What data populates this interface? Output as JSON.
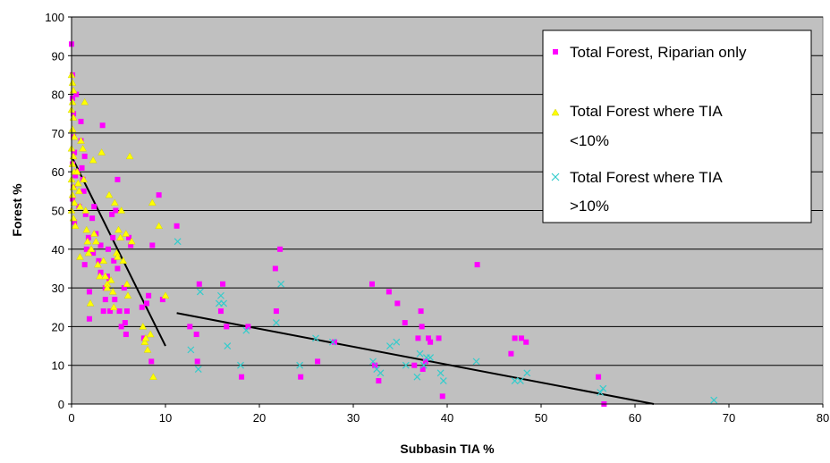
{
  "chart_data": {
    "type": "scatter",
    "xlabel": "Subbasin TIA %",
    "ylabel": "Forest %",
    "xlim": [
      0,
      80
    ],
    "ylim": [
      0,
      100
    ],
    "x_ticks": [
      0,
      10,
      20,
      30,
      40,
      50,
      60,
      70,
      80
    ],
    "y_ticks": [
      0,
      10,
      20,
      30,
      40,
      50,
      60,
      70,
      80,
      90,
      100
    ],
    "grid": "horizontal",
    "plot_background": "#c0c0c0",
    "legend": {
      "placement": "top-right",
      "entries": [
        {
          "line1": "Total Forest, Riparian only",
          "line2": ""
        },
        {
          "line1": "Total Forest where TIA",
          "line2": "<10%"
        },
        {
          "line1": "Total Forest where TIA",
          "line2": ">10%"
        }
      ]
    },
    "series": [
      {
        "name": "Total Forest, Riparian only",
        "marker": "square",
        "color": "#ff00ff",
        "points": [
          [
            0.0,
            93
          ],
          [
            0.1,
            85
          ],
          [
            0.1,
            79
          ],
          [
            0.2,
            75
          ],
          [
            0.2,
            69
          ],
          [
            0.3,
            65
          ],
          [
            0.1,
            62
          ],
          [
            0.2,
            56
          ],
          [
            0.1,
            53
          ],
          [
            0.3,
            47
          ],
          [
            0.5,
            80
          ],
          [
            0.4,
            59
          ],
          [
            0.6,
            60
          ],
          [
            0.8,
            51
          ],
          [
            1.0,
            73
          ],
          [
            1.0,
            68
          ],
          [
            1.1,
            61
          ],
          [
            1.3,
            55
          ],
          [
            1.4,
            64
          ],
          [
            1.2,
            58
          ],
          [
            1.5,
            49
          ],
          [
            1.4,
            36
          ],
          [
            1.6,
            40
          ],
          [
            1.8,
            43
          ],
          [
            1.9,
            29
          ],
          [
            1.9,
            22
          ],
          [
            2.2,
            48
          ],
          [
            2.3,
            39
          ],
          [
            2.4,
            51
          ],
          [
            2.6,
            44
          ],
          [
            2.9,
            37
          ],
          [
            3.1,
            34
          ],
          [
            3.3,
            72
          ],
          [
            3.1,
            41
          ],
          [
            3.4,
            24
          ],
          [
            3.6,
            30
          ],
          [
            3.6,
            27
          ],
          [
            3.8,
            33
          ],
          [
            3.9,
            40
          ],
          [
            4.0,
            32
          ],
          [
            4.1,
            24
          ],
          [
            4.3,
            49
          ],
          [
            4.4,
            43
          ],
          [
            4.5,
            37
          ],
          [
            4.6,
            27
          ],
          [
            4.7,
            50
          ],
          [
            4.9,
            58
          ],
          [
            4.9,
            35
          ],
          [
            5.1,
            24
          ],
          [
            5.3,
            20
          ],
          [
            5.6,
            30
          ],
          [
            5.7,
            21
          ],
          [
            5.9,
            24
          ],
          [
            5.8,
            18
          ],
          [
            6.1,
            43
          ],
          [
            6.3,
            41
          ],
          [
            7.5,
            25
          ],
          [
            7.7,
            17
          ],
          [
            8.0,
            26
          ],
          [
            8.2,
            28
          ],
          [
            8.6,
            41
          ],
          [
            8.5,
            11
          ],
          [
            9.3,
            54
          ],
          [
            9.7,
            27
          ],
          [
            11.2,
            46
          ],
          [
            12.6,
            20
          ],
          [
            13.3,
            18
          ],
          [
            13.4,
            11
          ],
          [
            13.6,
            31
          ],
          [
            15.9,
            24
          ],
          [
            16.1,
            31
          ],
          [
            16.5,
            20
          ],
          [
            18.1,
            7
          ],
          [
            18.8,
            20
          ],
          [
            21.7,
            35
          ],
          [
            21.8,
            24
          ],
          [
            22.2,
            40
          ],
          [
            24.4,
            7
          ],
          [
            26.2,
            11
          ],
          [
            28.0,
            16
          ],
          [
            32.0,
            31
          ],
          [
            32.3,
            10
          ],
          [
            32.7,
            6
          ],
          [
            33.8,
            29
          ],
          [
            34.7,
            26
          ],
          [
            35.5,
            21
          ],
          [
            36.5,
            10
          ],
          [
            36.9,
            17
          ],
          [
            37.2,
            24
          ],
          [
            37.3,
            20
          ],
          [
            37.4,
            9
          ],
          [
            37.7,
            11
          ],
          [
            38.0,
            17
          ],
          [
            38.2,
            16
          ],
          [
            39.1,
            17
          ],
          [
            39.5,
            2
          ],
          [
            43.2,
            36
          ],
          [
            46.8,
            13
          ],
          [
            47.2,
            17
          ],
          [
            47.9,
            17
          ],
          [
            48.4,
            16
          ],
          [
            56.1,
            7
          ],
          [
            56.7,
            0
          ]
        ]
      },
      {
        "name": "Total Forest where TIA <10%",
        "marker": "triangle",
        "color": "#ffff00",
        "points": [
          [
            0.0,
            85
          ],
          [
            0.1,
            83
          ],
          [
            0.2,
            81
          ],
          [
            0.1,
            78
          ],
          [
            0.0,
            76
          ],
          [
            0.2,
            74
          ],
          [
            0.1,
            71
          ],
          [
            0.3,
            69
          ],
          [
            0.0,
            66
          ],
          [
            0.2,
            64
          ],
          [
            0.1,
            62
          ],
          [
            0.3,
            60
          ],
          [
            0.0,
            58
          ],
          [
            0.2,
            56
          ],
          [
            0.1,
            54
          ],
          [
            0.3,
            52
          ],
          [
            0.0,
            50
          ],
          [
            0.2,
            48
          ],
          [
            0.4,
            46
          ],
          [
            0.6,
            60
          ],
          [
            0.7,
            57
          ],
          [
            0.8,
            55
          ],
          [
            0.9,
            51
          ],
          [
            0.9,
            38
          ],
          [
            1.0,
            68
          ],
          [
            1.2,
            66
          ],
          [
            1.4,
            78
          ],
          [
            1.3,
            58
          ],
          [
            1.5,
            50
          ],
          [
            1.6,
            45
          ],
          [
            1.7,
            42
          ],
          [
            1.8,
            39
          ],
          [
            2.0,
            26
          ],
          [
            2.1,
            40
          ],
          [
            2.3,
            63
          ],
          [
            2.4,
            44
          ],
          [
            2.6,
            42
          ],
          [
            2.8,
            36
          ],
          [
            3.0,
            33
          ],
          [
            3.2,
            65
          ],
          [
            3.4,
            37
          ],
          [
            3.6,
            33
          ],
          [
            3.8,
            31
          ],
          [
            3.8,
            30
          ],
          [
            4.0,
            54
          ],
          [
            4.2,
            32
          ],
          [
            4.4,
            29
          ],
          [
            4.5,
            25
          ],
          [
            4.6,
            52
          ],
          [
            4.8,
            39
          ],
          [
            4.9,
            38
          ],
          [
            5.0,
            45
          ],
          [
            5.2,
            43
          ],
          [
            5.3,
            50
          ],
          [
            5.5,
            37
          ],
          [
            5.8,
            44
          ],
          [
            5.9,
            31
          ],
          [
            6.0,
            28
          ],
          [
            6.2,
            64
          ],
          [
            6.4,
            42
          ],
          [
            7.6,
            20
          ],
          [
            7.8,
            16
          ],
          [
            7.9,
            17
          ],
          [
            8.1,
            14
          ],
          [
            8.4,
            18
          ],
          [
            8.6,
            52
          ],
          [
            8.7,
            7
          ],
          [
            9.3,
            46
          ],
          [
            10.0,
            28
          ]
        ]
      },
      {
        "name": "Total Forest where TIA >10%",
        "marker": "x",
        "color": "#33cccc",
        "points": [
          [
            11.3,
            42
          ],
          [
            12.7,
            14
          ],
          [
            13.5,
            9
          ],
          [
            13.7,
            29
          ],
          [
            15.7,
            26
          ],
          [
            15.9,
            28
          ],
          [
            16.2,
            26
          ],
          [
            16.6,
            15
          ],
          [
            18.0,
            10
          ],
          [
            18.6,
            19
          ],
          [
            21.8,
            21
          ],
          [
            22.3,
            31
          ],
          [
            24.3,
            10
          ],
          [
            26.0,
            17
          ],
          [
            27.8,
            16
          ],
          [
            32.1,
            11
          ],
          [
            32.5,
            9
          ],
          [
            32.9,
            8
          ],
          [
            33.9,
            15
          ],
          [
            34.6,
            16
          ],
          [
            35.6,
            10
          ],
          [
            36.8,
            7
          ],
          [
            37.1,
            13
          ],
          [
            37.5,
            10
          ],
          [
            37.8,
            12
          ],
          [
            38.2,
            12
          ],
          [
            39.3,
            8
          ],
          [
            39.6,
            6
          ],
          [
            43.1,
            11
          ],
          [
            47.2,
            6
          ],
          [
            47.8,
            6
          ],
          [
            48.5,
            8
          ],
          [
            56.3,
            3
          ],
          [
            56.6,
            4
          ],
          [
            68.4,
            1
          ]
        ]
      }
    ],
    "trend_lines": [
      {
        "from": [
          0,
          64
        ],
        "to": [
          10,
          15
        ]
      },
      {
        "from": [
          11.2,
          23.5
        ],
        "to": [
          62,
          0
        ]
      }
    ]
  }
}
